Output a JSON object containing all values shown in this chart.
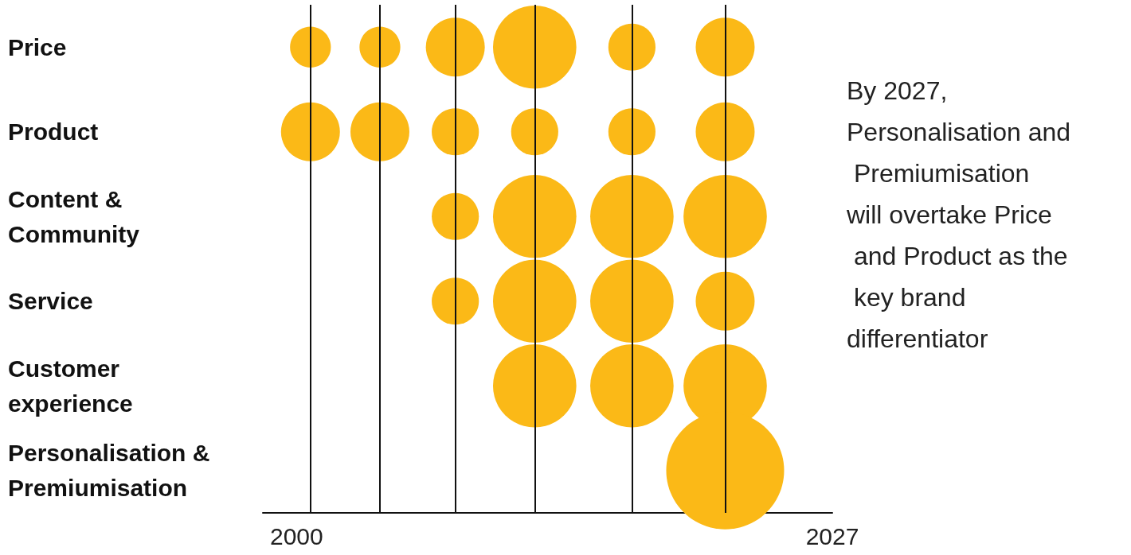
{
  "chart_data": {
    "type": "bubble",
    "orientation": "horizontal",
    "categories": [
      "Price",
      "Product",
      "Content & Community",
      "Service",
      "Customer experience",
      "Personalisation & Premiumisation"
    ],
    "series": [
      {
        "color": "#fbb917",
        "values": [
          2000.7,
          2000.7,
          null,
          null,
          null,
          null
        ],
        "sizes": [
          0.12,
          0.25,
          null,
          null,
          null,
          null
        ]
      },
      {
        "color": "#fbb917",
        "values": [
          2004.2,
          2004.2,
          null,
          null,
          null,
          null
        ],
        "sizes": [
          0.12,
          0.25,
          null,
          null,
          null,
          null
        ]
      },
      {
        "color": "#fbb917",
        "values": [
          2008.0,
          2008.0,
          2008.0,
          2008.0,
          null,
          null
        ],
        "sizes": [
          0.25,
          0.16,
          0.16,
          0.16,
          null,
          null
        ]
      },
      {
        "color": "#fbb917",
        "values": [
          2012.0,
          2012.0,
          2012.0,
          2012.0,
          2012.0,
          null
        ],
        "sizes": [
          0.5,
          0.16,
          0.5,
          0.5,
          0.5,
          null
        ]
      },
      {
        "color": "#fbb917",
        "values": [
          2016.9,
          2016.9,
          2016.9,
          2016.9,
          2016.9,
          null
        ],
        "sizes": [
          0.16,
          0.16,
          0.5,
          0.5,
          0.5,
          null
        ]
      },
      {
        "color": "#fbb917",
        "values": [
          2021.6,
          2021.6,
          2021.6,
          2021.6,
          2021.6,
          2021.6
        ],
        "sizes": [
          0.25,
          0.25,
          0.5,
          0.25,
          0.5,
          1
        ]
      }
    ],
    "xlim": [
      1998.3,
      2027
    ],
    "xticks": [
      2000,
      2027
    ],
    "grid": false,
    "ref_lines": [
      {
        "axis": "x",
        "value": 2000.7,
        "color": "#111111"
      },
      {
        "axis": "x",
        "value": 2004.2,
        "color": "#111111"
      },
      {
        "axis": "x",
        "value": 2008.0,
        "color": "#111111"
      },
      {
        "axis": "x",
        "value": 2012.0,
        "color": "#111111"
      },
      {
        "axis": "x",
        "value": 2016.9,
        "color": "#111111"
      },
      {
        "axis": "x",
        "value": 2021.6,
        "color": "#111111"
      }
    ],
    "annotations": [
      "By 2027, Personalisation and Premiumisation will overtake Price and Product as the key brand differentiator"
    ]
  }
}
